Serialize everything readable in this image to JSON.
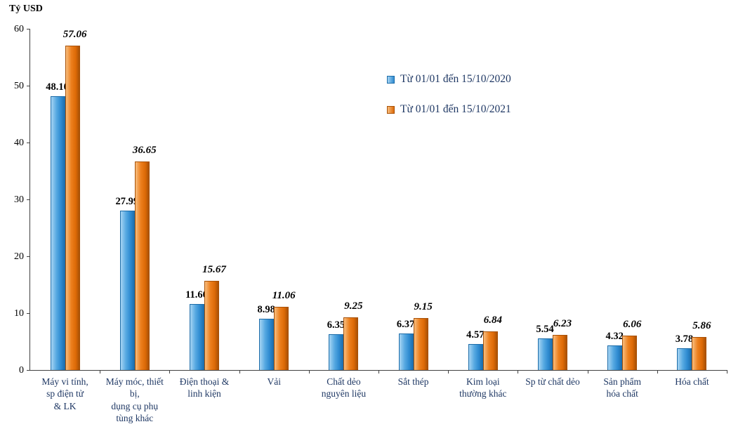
{
  "chart_data": {
    "type": "bar",
    "title": "",
    "ylabel": "Tỷ USD",
    "xlabel": "",
    "ylim": [
      0,
      60
    ],
    "yticks": [
      0,
      10,
      20,
      30,
      40,
      50,
      60
    ],
    "grid": false,
    "legend_position": "upper middle-right, vertical",
    "categories": [
      "Máy vi tính,\nsp điện tử\n& LK",
      "Máy móc, thiết\nbị,\ndụng cụ phụ\ntùng khác",
      "Điện thoại &\nlinh kiện",
      "Vải",
      "Chất dẻo\nnguyên liệu",
      "Sắt thép",
      "Kim loại\nthường khác",
      "Sp từ chất dẻo",
      "Sản phẩm\nhóa chất",
      "Hóa chất"
    ],
    "series": [
      {
        "name": "Từ 01/01 đến 15/10/2020",
        "color": "#3E9BDC",
        "label_style": "bold",
        "values": [
          48.1,
          27.99,
          11.6,
          8.98,
          6.35,
          6.37,
          4.57,
          5.54,
          4.32,
          3.78
        ]
      },
      {
        "name": "Từ 01/01 đến 15/10/2021",
        "color": "#E36C09",
        "label_style": "bold-italic",
        "values": [
          57.06,
          36.65,
          15.67,
          11.06,
          9.25,
          9.15,
          6.84,
          6.23,
          6.06,
          5.86
        ]
      }
    ]
  }
}
